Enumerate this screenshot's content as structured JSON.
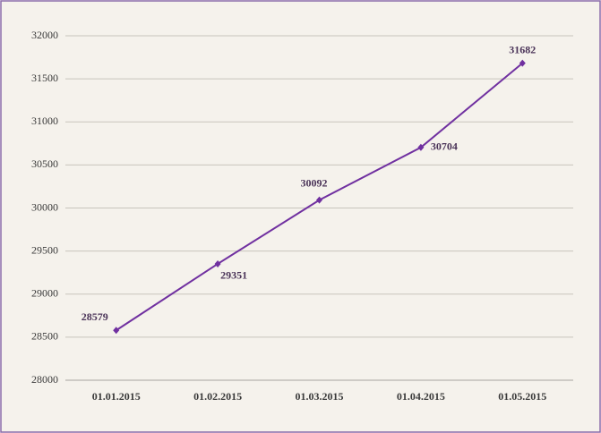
{
  "chart_data": {
    "type": "line",
    "categories": [
      "01.01.2015",
      "01.02.2015",
      "01.03.2015",
      "01.04.2015",
      "01.05.2015"
    ],
    "series": [
      {
        "name": null,
        "color": "#7030a0",
        "values": [
          28579,
          29351,
          30092,
          30704,
          31682
        ]
      }
    ],
    "ylim": [
      28000,
      32000
    ],
    "yticks": [
      28000,
      28500,
      29000,
      29500,
      30000,
      30500,
      31000,
      31500,
      32000
    ],
    "grid": true
  }
}
